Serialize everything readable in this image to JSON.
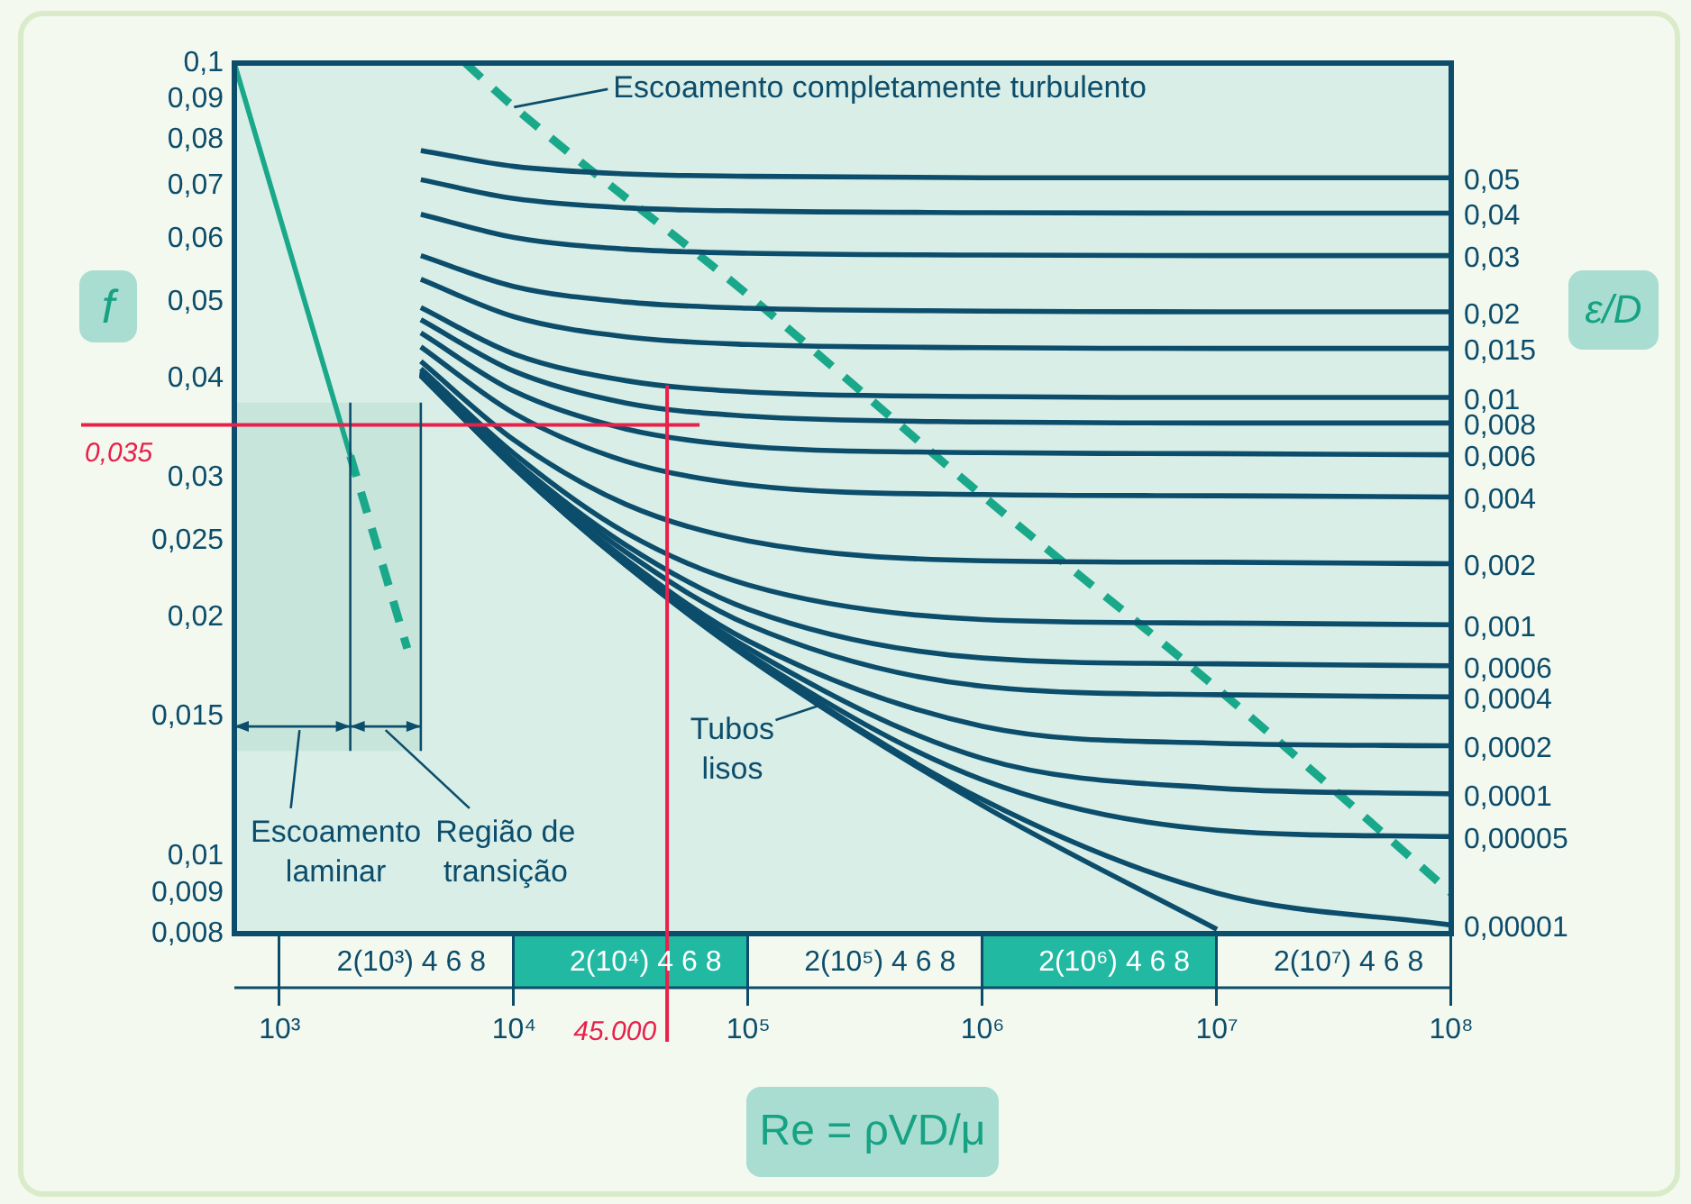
{
  "chart_data": {
    "type": "line",
    "xlabel": "Re = ρVD/μ",
    "ylabel": "f",
    "y2label": "ε/D",
    "log": "xy",
    "grid": false,
    "legend": false,
    "marker": "none",
    "xlim": [
      640,
      100000000
    ],
    "xticks": [
      {
        "value": 1000,
        "label": "10³"
      },
      {
        "value": 10000,
        "label": "10⁴"
      },
      {
        "value": 100000,
        "label": "10⁵"
      },
      {
        "value": 1000000,
        "label": "10⁶"
      },
      {
        "value": 10000000,
        "label": "10⁷"
      },
      {
        "value": 100000000,
        "label": "10⁸"
      }
    ],
    "ylim": [
      0.008,
      0.1
    ],
    "yticks": [
      {
        "value": 0.1,
        "label": "0,1"
      },
      {
        "value": 0.09,
        "label": "0,09"
      },
      {
        "value": 0.08,
        "label": "0,08"
      },
      {
        "value": 0.07,
        "label": "0,07"
      },
      {
        "value": 0.06,
        "label": "0,06"
      },
      {
        "value": 0.05,
        "label": "0,05"
      },
      {
        "value": 0.04,
        "label": "0,04"
      },
      {
        "value": 0.03,
        "label": "0,03"
      },
      {
        "value": 0.025,
        "label": "0,025"
      },
      {
        "value": 0.02,
        "label": "0,02"
      },
      {
        "value": 0.015,
        "label": "0,015"
      },
      {
        "value": 0.01,
        "label": "0,01"
      },
      {
        "value": 0.009,
        "label": "0,009"
      },
      {
        "value": 0.008,
        "label": "0,008"
      }
    ],
    "series": [
      {
        "name": "0,05",
        "color": "#0c4d6b",
        "x": [
          4000,
          10000,
          30000,
          100000,
          1000000,
          10000000,
          100000000
        ],
        "values": [
          0.0776,
          0.0741,
          0.0725,
          0.072,
          0.0717,
          0.0717,
          0.0717
        ]
      },
      {
        "name": "0,04",
        "color": "#0c4d6b",
        "x": [
          4000,
          10000,
          30000,
          100000,
          1000000,
          10000000,
          100000000
        ],
        "values": [
          0.0713,
          0.0675,
          0.0657,
          0.0651,
          0.0648,
          0.0647,
          0.0647
        ]
      },
      {
        "name": "0,03",
        "color": "#0c4d6b",
        "x": [
          4000,
          10000,
          30000,
          100000,
          1000000,
          10000000,
          100000000
        ],
        "values": [
          0.0645,
          0.0603,
          0.0583,
          0.0576,
          0.0573,
          0.0572,
          0.0572
        ]
      },
      {
        "name": "0,02",
        "color": "#0c4d6b",
        "x": [
          4000,
          10000,
          30000,
          100000,
          1000000,
          10000000,
          100000000
        ],
        "values": [
          0.0572,
          0.0523,
          0.05,
          0.0491,
          0.0487,
          0.0486,
          0.0486
        ]
      },
      {
        "name": "0,015",
        "color": "#0c4d6b",
        "x": [
          4000,
          10000,
          30000,
          100000,
          1000000,
          10000000,
          100000000
        ],
        "values": [
          0.0534,
          0.0479,
          0.0452,
          0.0442,
          0.0438,
          0.0437,
          0.0437
        ]
      },
      {
        "name": "0,01",
        "color": "#0c4d6b",
        "x": [
          4000,
          10000,
          30000,
          100000,
          1000000,
          10000000,
          100000000
        ],
        "values": [
          0.0492,
          0.043,
          0.0398,
          0.0385,
          0.038,
          0.0379,
          0.0379
        ]
      },
      {
        "name": "0,008",
        "color": "#0c4d6b",
        "x": [
          4000,
          10000,
          30000,
          100000,
          1000000,
          10000000,
          100000000
        ],
        "values": [
          0.0475,
          0.0409,
          0.0373,
          0.0359,
          0.0353,
          0.0352,
          0.0352
        ]
      },
      {
        "name": "0,006",
        "color": "#0c4d6b",
        "x": [
          4000,
          10000,
          30000,
          100000,
          1000000,
          10000000,
          100000000
        ],
        "values": [
          0.0457,
          0.0386,
          0.0346,
          0.0329,
          0.0323,
          0.0322,
          0.0321
        ]
      },
      {
        "name": "0,004",
        "color": "#0c4d6b",
        "x": [
          4000,
          10000,
          30000,
          100000,
          1000000,
          10000000,
          100000000
        ],
        "values": [
          0.0439,
          0.0362,
          0.0315,
          0.0294,
          0.0286,
          0.0285,
          0.0284
        ]
      },
      {
        "name": "0,002",
        "color": "#0c4d6b",
        "x": [
          4000,
          10000,
          30000,
          100000,
          1000000,
          10000000,
          100000000
        ],
        "values": [
          0.0421,
          0.0335,
          0.0278,
          0.025,
          0.0236,
          0.0235,
          0.0234
        ]
      },
      {
        "name": "0,001",
        "color": "#0c4d6b",
        "x": [
          4000,
          10000,
          30000,
          100000,
          1000000,
          10000000,
          100000000
        ],
        "values": [
          0.0412,
          0.0322,
          0.0256,
          0.022,
          0.0199,
          0.0197,
          0.0196
        ]
      },
      {
        "name": "0,0006",
        "color": "#0c4d6b",
        "x": [
          4000,
          10000,
          30000,
          100000,
          1000000,
          10000000,
          100000000
        ],
        "values": [
          0.0409,
          0.0316,
          0.0247,
          0.0205,
          0.0178,
          0.0175,
          0.0174
        ]
      },
      {
        "name": "0,0004",
        "color": "#0c4d6b",
        "x": [
          4000,
          10000,
          30000,
          100000,
          1000000,
          10000000,
          100000000
        ],
        "values": [
          0.0407,
          0.0314,
          0.0242,
          0.0196,
          0.0164,
          0.016,
          0.0159
        ]
      },
      {
        "name": "0,0002",
        "color": "#0c4d6b",
        "x": [
          4000,
          10000,
          30000,
          100000,
          1000000,
          10000000,
          100000000
        ],
        "values": [
          0.0406,
          0.0311,
          0.0237,
          0.0187,
          0.0146,
          0.0139,
          0.0138
        ]
      },
      {
        "name": "0,0001",
        "color": "#0c4d6b",
        "x": [
          4000,
          10000,
          30000,
          100000,
          1000000,
          10000000,
          100000000
        ],
        "values": [
          0.0405,
          0.031,
          0.0235,
          0.0183,
          0.0133,
          0.0122,
          0.012
        ]
      },
      {
        "name": "0,00005",
        "color": "#0c4d6b",
        "x": [
          4000,
          10000,
          30000,
          100000,
          1000000,
          10000000,
          100000000
        ],
        "values": [
          0.0404,
          0.0309,
          0.0234,
          0.018,
          0.0125,
          0.0108,
          0.0106
        ]
      },
      {
        "name": "0,00001",
        "color": "#0c4d6b",
        "x": [
          4000,
          10000,
          30000,
          100000,
          1000000,
          10000000,
          100000000
        ],
        "values": [
          0.0404,
          0.0309,
          0.0233,
          0.0179,
          0.0118,
          0.009,
          0.0082
        ]
      },
      {
        "color": "#0c4d6b",
        "x": [
          4000,
          10000,
          30000,
          100000,
          1000000,
          10000000
        ],
        "values": [
          0.0404,
          0.0309,
          0.0233,
          0.0178,
          0.0116,
          0.0081
        ]
      },
      {
        "color": "#1aa88a",
        "x": [
          640,
          2000
        ],
        "values": [
          0.1,
          0.032
        ]
      },
      {
        "color": "#1aa88a",
        "line_style": "dashed",
        "x": [
          2000,
          3500
        ],
        "values": [
          0.032,
          0.0183
        ]
      },
      {
        "color": "#1aa88a",
        "line_style": "dashed",
        "x": [
          6200,
          10000,
          100000,
          1000000,
          10000000,
          100000000
        ],
        "values": [
          0.1,
          0.088,
          0.051,
          0.0285,
          0.0163,
          0.009
        ]
      }
    ],
    "ref_lines": [
      {
        "axis": "y",
        "value": 0.035,
        "label": "0,035",
        "color": "#e8204a"
      },
      {
        "axis": "x",
        "value": 45000,
        "label": "45.000",
        "color": "#e8204a"
      },
      {
        "axis": "x",
        "value": 2000,
        "color": "#0c4d6b"
      },
      {
        "axis": "x",
        "value": 4000,
        "color": "#0c4d6b"
      }
    ],
    "bands": [
      {
        "axis": "x",
        "from": 640,
        "to": 2000,
        "label": "Escoamento laminar",
        "color": "#c8e5dc"
      },
      {
        "axis": "x",
        "from": 2000,
        "to": 4000,
        "label": "Região de transição",
        "color": "#c8e5dc"
      }
    ],
    "annotations": [
      {
        "text": "Escoamento completamente turbulento",
        "x": 10000,
        "y": 0.088
      },
      {
        "text": "Tubos lisos",
        "x": 200000,
        "y": 0.0155
      },
      "2(10³) 4 6 8",
      "2(10⁴) 4 6 8",
      "2(10⁵) 4 6 8",
      "2(10⁶) 4 6 8",
      "2(10⁷) 4 6 8"
    ]
  }
}
